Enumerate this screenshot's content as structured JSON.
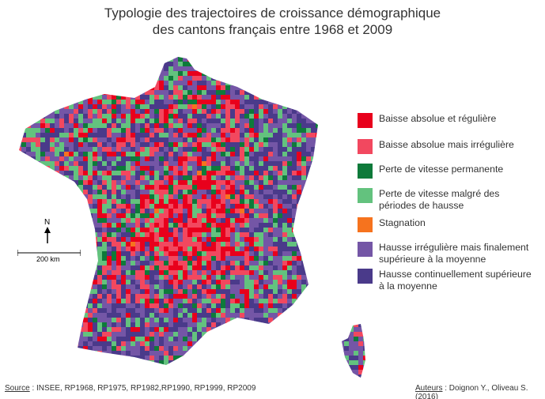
{
  "title": {
    "line1": "Typologie des trajectoires de croissance démographique",
    "line2": "des cantons français entre 1968 et 2009"
  },
  "legend": [
    {
      "label": "Baisse absolue et régulière",
      "color": "#e8001c"
    },
    {
      "label": "Baisse absolue mais irrégulière",
      "color": "#f2485f"
    },
    {
      "label": "Perte de vitesse permanente",
      "color": "#0e7a3a"
    },
    {
      "label": "Perte de vitesse malgré des périodes de hausse",
      "color": "#63c27e"
    },
    {
      "label": "Stagnation",
      "color": "#f6731e"
    },
    {
      "label": "Hausse irrégulière mais finalement supérieure à la moyenne",
      "color": "#7456a6"
    },
    {
      "label": "Hausse continuellement supérieure à la moyenne",
      "color": "#4a3a8a"
    }
  ],
  "north_label": "N",
  "scale_label": "200 km",
  "footer": {
    "source_label": "Source",
    "source_text": " : INSEE, RP1968, RP1975, RP1982,RP1990, RP1999, RP2009",
    "authors_label": "Auteurs",
    "authors_text": " : Doignon Y., Oliveau S. (2016)"
  }
}
